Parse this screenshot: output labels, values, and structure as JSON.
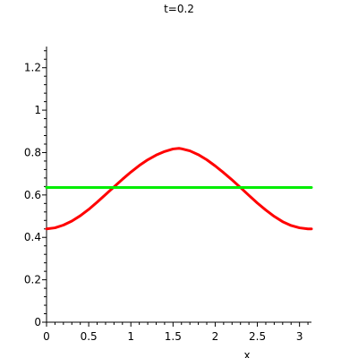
{
  "chart_data": {
    "type": "line",
    "title": "t=0.2",
    "xlabel": "x",
    "ylabel": "",
    "xlim": [
      0,
      3.1416
    ],
    "ylim": [
      0,
      1.3
    ],
    "x_ticks": [
      0,
      0.5,
      1,
      1.5,
      2,
      2.5,
      3
    ],
    "x_tick_labels": [
      "0",
      "0.5",
      "1",
      "1.5",
      "2",
      "2.5",
      "3"
    ],
    "y_ticks": [
      0,
      0.2,
      0.4,
      0.6,
      0.8,
      1,
      1.2
    ],
    "y_tick_labels": [
      "0",
      "0.2",
      "0.4",
      "0.6",
      "0.8",
      "1",
      "1.2"
    ],
    "grid": false,
    "legend": "none",
    "series": [
      {
        "color": "#ff0000",
        "x": [
          0,
          0.1,
          0.2,
          0.3,
          0.4,
          0.5,
          0.6,
          0.7,
          0.8,
          0.9,
          1.0,
          1.1,
          1.2,
          1.3,
          1.4,
          1.5,
          1.5708,
          1.6,
          1.7,
          1.8,
          1.9,
          2.0,
          2.1,
          2.2,
          2.3,
          2.4,
          2.5,
          2.6,
          2.7,
          2.8,
          2.9,
          3.0,
          3.1,
          3.1416
        ],
        "y": [
          0.44,
          0.445,
          0.458,
          0.477,
          0.502,
          0.532,
          0.566,
          0.602,
          0.638,
          0.674,
          0.708,
          0.739,
          0.766,
          0.788,
          0.805,
          0.817,
          0.82,
          0.818,
          0.808,
          0.79,
          0.766,
          0.737,
          0.705,
          0.671,
          0.635,
          0.598,
          0.562,
          0.529,
          0.499,
          0.474,
          0.456,
          0.445,
          0.44,
          0.44
        ]
      },
      {
        "color": "#00ee00",
        "x": [
          0,
          3.1416
        ],
        "y": [
          0.635,
          0.635
        ]
      }
    ]
  }
}
